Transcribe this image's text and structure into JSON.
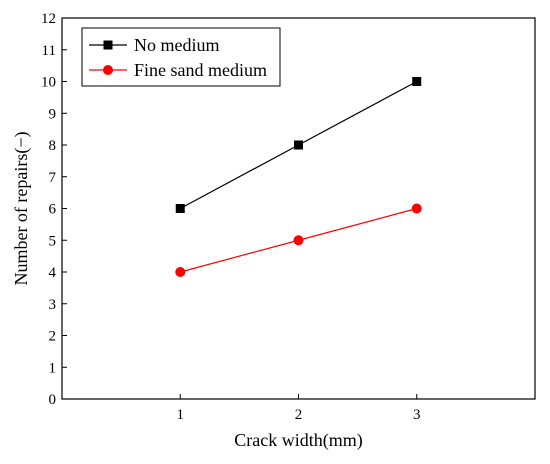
{
  "chart_data": {
    "type": "line",
    "title": "",
    "xlabel": "Crack width(mm)",
    "ylabel": "Number of repairs(−)",
    "x": [
      1,
      2,
      3
    ],
    "xlim": [
      0,
      4
    ],
    "ylim": [
      0,
      12
    ],
    "xticks": [
      "1",
      "2",
      "3"
    ],
    "yticks": [
      "0",
      "1",
      "2",
      "3",
      "4",
      "5",
      "6",
      "7",
      "8",
      "9",
      "10",
      "11",
      "12"
    ],
    "grid": false,
    "legend_position": "top-left",
    "series": [
      {
        "name": "No medium",
        "values": [
          6,
          8,
          10
        ],
        "color": "#000000",
        "marker": "square"
      },
      {
        "name": "Fine sand medium",
        "values": [
          4,
          5,
          6
        ],
        "color": "#ff0000",
        "marker": "circle"
      }
    ]
  }
}
